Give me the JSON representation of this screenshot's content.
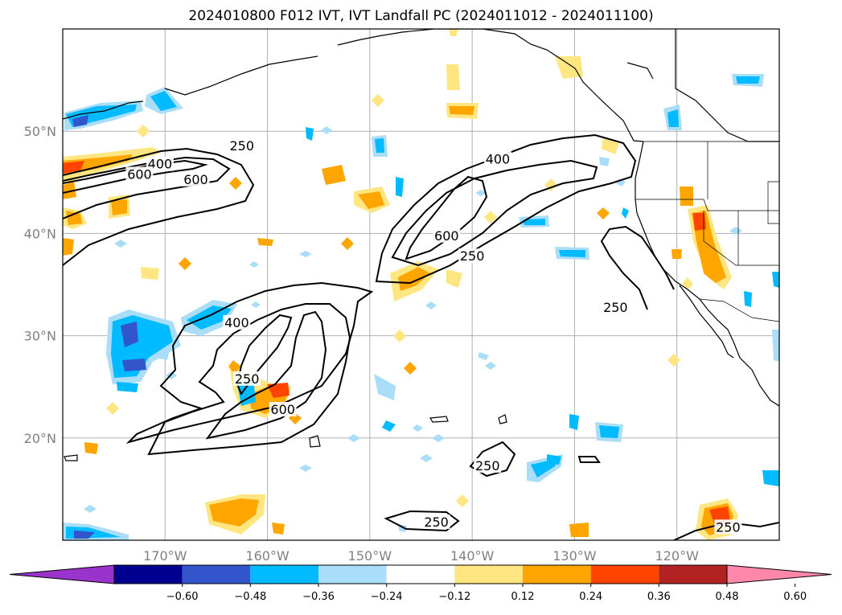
{
  "title": "2024010800 F012 IVT, IVT Landfall PC (2024011012 - 2024011100)",
  "map": {
    "lat_labels": [
      "50°N",
      "40°N",
      "30°N",
      "20°N"
    ],
    "lon_labels": [
      "170°W",
      "160°W",
      "150°W",
      "140°W",
      "130°W",
      "120°W"
    ],
    "contour_labels": [
      {
        "text": "250",
        "lon": -162.5,
        "lat": 48.3
      },
      {
        "text": "400",
        "lon": -170.5,
        "lat": 46.5
      },
      {
        "text": "600",
        "lon": -172.5,
        "lat": 45.5
      },
      {
        "text": "600",
        "lon": -167.0,
        "lat": 45.0
      },
      {
        "text": "400",
        "lon": -137.5,
        "lat": 47.0
      },
      {
        "text": "600",
        "lon": -142.5,
        "lat": 39.5
      },
      {
        "text": "250",
        "lon": -140.0,
        "lat": 37.5
      },
      {
        "text": "250",
        "lon": -126.0,
        "lat": 32.5
      },
      {
        "text": "400",
        "lon": -163.0,
        "lat": 31.0
      },
      {
        "text": "250",
        "lon": -162.0,
        "lat": 25.5
      },
      {
        "text": "600",
        "lon": -158.5,
        "lat": 22.5
      },
      {
        "text": "250",
        "lon": -138.5,
        "lat": 17.0
      },
      {
        "text": "250",
        "lon": -143.5,
        "lat": 11.5
      },
      {
        "text": "250",
        "lon": -115.0,
        "lat": 11.0
      }
    ]
  },
  "colorbar": {
    "ticks": [
      "−0.60",
      "−0.48",
      "−0.36",
      "−0.24",
      "−0.12",
      "0.12",
      "0.24",
      "0.36",
      "0.48",
      "0.60"
    ],
    "colors": [
      "#9933cc",
      "#000090",
      "#3355cc",
      "#00bbff",
      "#aaddf7",
      "#ffffff",
      "#ffe680",
      "#ffa500",
      "#ff4400",
      "#b22222",
      "#ff88aa"
    ]
  }
}
